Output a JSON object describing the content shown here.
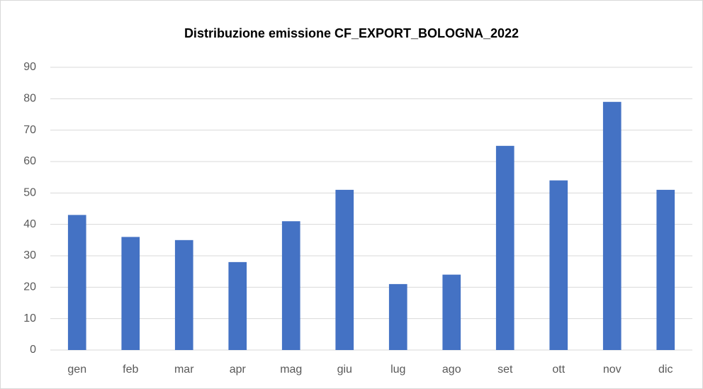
{
  "chart_data": {
    "type": "bar",
    "title": "Distribuzione emissione CF_EXPORT_BOLOGNA_2022",
    "categories": [
      "gen",
      "feb",
      "mar",
      "apr",
      "mag",
      "giu",
      "lug",
      "ago",
      "set",
      "ott",
      "nov",
      "dic"
    ],
    "values": [
      43,
      36,
      35,
      28,
      41,
      51,
      21,
      24,
      65,
      54,
      79,
      51
    ],
    "color": "#4472c4",
    "ylim": [
      0,
      90
    ],
    "yticks": [
      0,
      10,
      20,
      30,
      40,
      50,
      60,
      70,
      80,
      90
    ],
    "grid": true
  }
}
